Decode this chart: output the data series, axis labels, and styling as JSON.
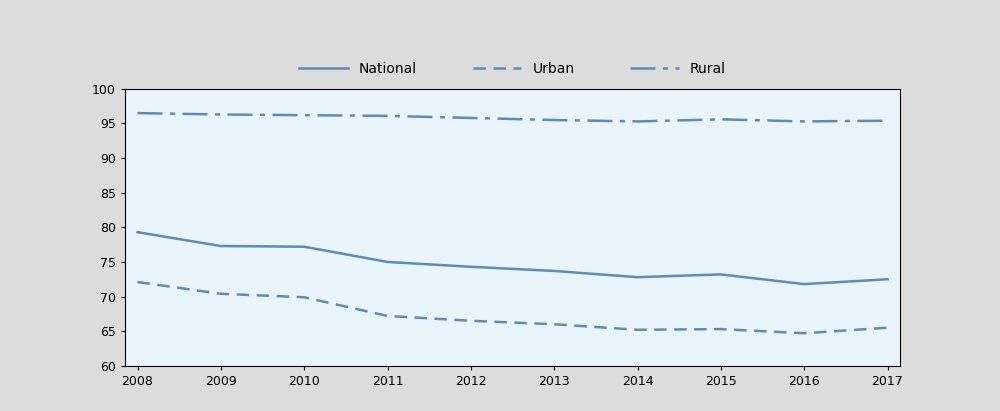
{
  "years": [
    2008,
    2009,
    2010,
    2011,
    2012,
    2013,
    2014,
    2015,
    2016,
    2017
  ],
  "national": [
    79.3,
    77.3,
    77.2,
    75.0,
    74.3,
    73.7,
    72.8,
    73.2,
    71.8,
    72.5
  ],
  "urban": [
    72.1,
    70.4,
    69.9,
    67.2,
    66.5,
    66.0,
    65.2,
    65.3,
    64.7,
    65.5
  ],
  "rural": [
    96.5,
    96.3,
    96.2,
    96.1,
    95.8,
    95.5,
    95.3,
    95.6,
    95.3,
    95.4
  ],
  "line_color": "#5B8DB8",
  "plot_bg_color": "#EAF4FB",
  "fig_bg_color": "#DCDCDC",
  "ylim": [
    60,
    100
  ],
  "yticks": [
    60,
    65,
    70,
    75,
    80,
    85,
    90,
    95,
    100
  ],
  "legend_labels": [
    "National",
    "Urban",
    "Rural"
  ],
  "national_linestyle": "-",
  "urban_dashes": [
    5,
    3
  ],
  "rural_dashes": [
    10,
    3,
    2,
    3
  ],
  "linewidth": 1.8,
  "tick_fontsize": 9,
  "legend_fontsize": 10
}
